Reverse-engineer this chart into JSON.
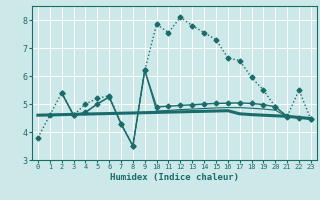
{
  "title": "",
  "xlabel": "Humidex (Indice chaleur)",
  "xlim": [
    -0.5,
    23.5
  ],
  "ylim": [
    3,
    8.5
  ],
  "yticks": [
    3,
    4,
    5,
    6,
    7,
    8
  ],
  "xticks": [
    0,
    1,
    2,
    3,
    4,
    5,
    6,
    7,
    8,
    9,
    10,
    11,
    12,
    13,
    14,
    15,
    16,
    17,
    18,
    19,
    20,
    21,
    22,
    23
  ],
  "bg_color": "#cce8e8",
  "line_color": "#1a6b6b",
  "grid_color": "#ffffff",
  "line1_x": [
    0,
    1,
    2,
    3,
    4,
    5,
    6,
    7,
    8,
    9,
    10,
    11,
    12,
    13,
    14,
    15,
    16,
    17,
    18,
    19,
    20,
    21,
    22,
    23
  ],
  "line1_y": [
    3.8,
    4.6,
    5.4,
    4.6,
    5.0,
    5.2,
    5.3,
    4.3,
    3.5,
    6.2,
    7.85,
    7.55,
    8.1,
    7.8,
    7.55,
    7.3,
    6.65,
    6.55,
    5.95,
    5.5,
    4.9,
    4.55,
    5.5,
    4.45
  ],
  "line2_x": [
    0,
    1,
    2,
    3,
    4,
    5,
    6,
    7,
    8,
    9,
    10,
    11,
    12,
    13,
    14,
    15,
    16,
    17,
    18,
    19,
    20,
    21,
    22,
    23
  ],
  "line2_y": [
    4.6,
    4.61,
    4.62,
    4.63,
    4.64,
    4.65,
    4.66,
    4.67,
    4.68,
    4.69,
    4.7,
    4.71,
    4.72,
    4.73,
    4.74,
    4.75,
    4.76,
    4.65,
    4.62,
    4.6,
    4.58,
    4.56,
    4.52,
    4.48
  ],
  "line3_x": [
    2,
    3,
    4,
    5,
    6,
    7,
    8,
    9,
    10,
    11,
    12,
    13,
    14,
    15,
    16,
    17,
    18,
    19,
    20,
    21,
    22,
    23
  ],
  "line3_y": [
    5.4,
    4.6,
    4.7,
    5.0,
    5.25,
    4.3,
    3.5,
    6.2,
    4.9,
    4.92,
    4.95,
    4.97,
    5.0,
    5.02,
    5.03,
    5.04,
    5.02,
    4.98,
    4.9,
    4.56,
    4.5,
    4.47
  ],
  "line4_x": [
    2,
    3,
    4,
    5,
    6,
    7,
    8,
    9,
    10,
    11,
    12,
    13,
    14,
    15,
    16,
    17,
    18,
    19,
    20,
    21,
    22,
    23
  ],
  "line4_y": [
    5.4,
    4.6,
    4.7,
    5.0,
    5.25,
    4.3,
    3.5,
    6.2,
    4.75,
    4.77,
    4.8,
    4.82,
    4.84,
    4.86,
    4.87,
    4.87,
    4.85,
    4.82,
    4.78,
    4.55,
    4.5,
    4.47
  ]
}
